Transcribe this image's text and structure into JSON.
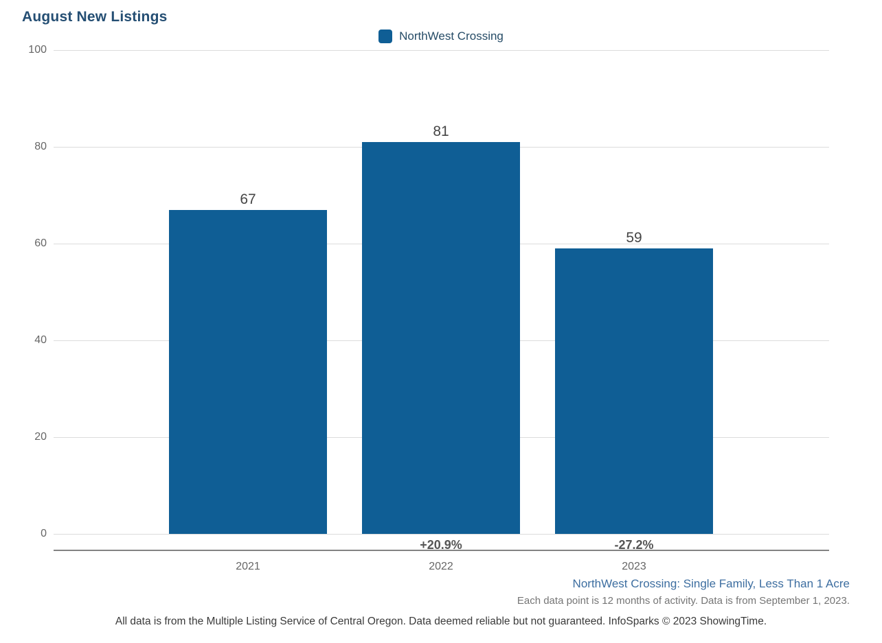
{
  "title": "August New Listings",
  "legend": {
    "label": "NorthWest Crossing"
  },
  "chart_data": {
    "type": "bar",
    "title": "August New Listings",
    "series_name": "NorthWest Crossing",
    "categories": [
      "2021",
      "2022",
      "2023"
    ],
    "values": [
      67,
      81,
      59
    ],
    "pct_change_labels": [
      "",
      "+20.9%",
      "-27.2%"
    ],
    "ylim": [
      0,
      100
    ],
    "yticks": [
      0,
      20,
      40,
      60,
      80,
      100
    ],
    "grid": true,
    "legend_position": "top-center",
    "bar_color": "#0F5E95"
  },
  "footer": {
    "segment_label": "NorthWest Crossing: Single Family, Less Than 1 Acre",
    "data_note": "Each data point is 12 months of activity. Data is from September 1, 2023.",
    "disclaimer": "All data is from the Multiple Listing Service of Central Oregon. Data deemed reliable but not guaranteed. InfoSparks © 2023 ShowingTime."
  },
  "colors": {
    "bar": "#0F5E95",
    "title_text": "#244E73",
    "legend_text": "#254B66",
    "segment_label_text": "#3D6EA0",
    "axis_text": "#666666",
    "value_label_text": "#454545",
    "pct_label_text": "#555555",
    "gridline": "#DCDCDC",
    "axis_line": "#828282"
  }
}
